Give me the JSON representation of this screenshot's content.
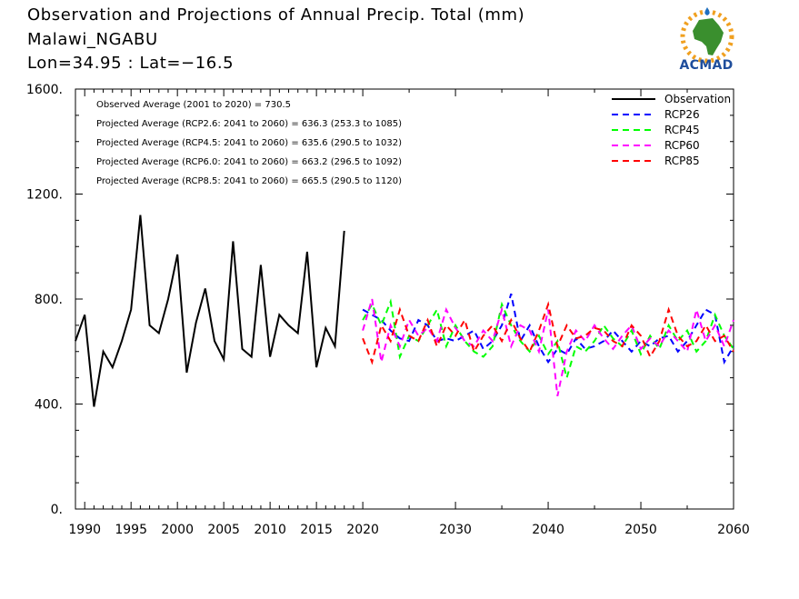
{
  "header": {
    "title": "Observation and Projections of Annual Precip. Total (mm)",
    "location": "Malawi_NGABU",
    "coords": "Lon=34.95 : Lat=−16.5"
  },
  "logo": {
    "text": "ACMAD",
    "icon": "africa-map-icon"
  },
  "colors": {
    "observation": "#000000",
    "rcp26": "#0000ff",
    "rcp45": "#00ff00",
    "rcp60": "#ff00ff",
    "rcp85": "#ff0000"
  },
  "chart_data": {
    "type": "line",
    "title": "Observation and Projections of Annual Precip. Total (mm)",
    "xlabel": "",
    "ylabel": "",
    "ylim": [
      0,
      1600
    ],
    "xlim": [
      1989,
      2060
    ],
    "y_ticks": [
      {
        "value": 0,
        "label": "0."
      },
      {
        "value": 400,
        "label": "400."
      },
      {
        "value": 800,
        "label": "800."
      },
      {
        "value": 1200,
        "label": "1200."
      },
      {
        "value": 1600,
        "label": "1600."
      }
    ],
    "x_ticks": [
      {
        "value": 1990,
        "label": "1990"
      },
      {
        "value": 1995,
        "label": "1995"
      },
      {
        "value": 2000,
        "label": "2000"
      },
      {
        "value": 2005,
        "label": "2005"
      },
      {
        "value": 2010,
        "label": "2010"
      },
      {
        "value": 2015,
        "label": "2015"
      },
      {
        "value": 2020,
        "label": "2020"
      },
      {
        "value": 2030,
        "label": "2030"
      },
      {
        "value": 2040,
        "label": "2040"
      },
      {
        "value": 2050,
        "label": "2050"
      },
      {
        "value": 2060,
        "label": "2060"
      }
    ],
    "annotations": [
      "Observed Average (2001 to 2020) = 730.5",
      "Projected Average (RCP2.6: 2041 to 2060) = 636.3 (253.3 to 1085)",
      "Projected Average (RCP4.5: 2041 to 2060) = 635.6 (290.5 to 1032)",
      "Projected Average (RCP6.0: 2041 to 2060) = 663.2 (296.5 to 1092)",
      "Projected Average (RCP8.5: 2041 to 2060) = 665.5 (290.5 to 1120)"
    ],
    "legend_position": "top-right",
    "series": [
      {
        "name": "Observation",
        "color": "#000000",
        "style": "solid",
        "x": [
          1989,
          1990,
          1991,
          1992,
          1993,
          1994,
          1995,
          1996,
          1997,
          1998,
          1999,
          2000,
          2001,
          2002,
          2003,
          2004,
          2005,
          2006,
          2007,
          2008,
          2009,
          2010,
          2011,
          2012,
          2013,
          2014,
          2015,
          2016,
          2017,
          2018,
          2019
        ],
        "y": [
          640,
          740,
          390,
          600,
          540,
          640,
          760,
          1120,
          700,
          670,
          800,
          970,
          520,
          710,
          840,
          640,
          570,
          1020,
          610,
          580,
          930,
          580,
          740,
          700,
          670,
          980,
          540,
          690,
          620,
          1060,
          null
        ]
      },
      {
        "name": "RCP26",
        "color": "#0000ff",
        "style": "dashed",
        "x": [
          2020,
          2021,
          2022,
          2023,
          2024,
          2025,
          2026,
          2027,
          2028,
          2029,
          2030,
          2031,
          2032,
          2033,
          2034,
          2035,
          2036,
          2037,
          2038,
          2039,
          2040,
          2041,
          2042,
          2043,
          2044,
          2045,
          2046,
          2047,
          2048,
          2049,
          2050,
          2051,
          2052,
          2053,
          2054,
          2055,
          2056,
          2057,
          2058,
          2059,
          2060
        ],
        "y": [
          760,
          740,
          720,
          680,
          650,
          640,
          720,
          700,
          640,
          650,
          640,
          660,
          680,
          610,
          640,
          700,
          820,
          640,
          700,
          620,
          560,
          610,
          590,
          650,
          610,
          620,
          640,
          680,
          640,
          600,
          640,
          620,
          650,
          660,
          600,
          640,
          700,
          760,
          740,
          560,
          620
        ]
      },
      {
        "name": "RCP45",
        "color": "#00ff00",
        "style": "dashed",
        "x": [
          2020,
          2021,
          2022,
          2023,
          2024,
          2025,
          2026,
          2027,
          2028,
          2029,
          2030,
          2031,
          2032,
          2033,
          2034,
          2035,
          2036,
          2037,
          2038,
          2039,
          2040,
          2041,
          2042,
          2043,
          2044,
          2045,
          2046,
          2047,
          2048,
          2049,
          2050,
          2051,
          2052,
          2053,
          2054,
          2055,
          2056,
          2057,
          2058,
          2059,
          2060
        ],
        "y": [
          720,
          780,
          700,
          790,
          580,
          660,
          640,
          700,
          760,
          620,
          700,
          640,
          600,
          580,
          620,
          780,
          700,
          640,
          600,
          660,
          590,
          640,
          500,
          620,
          600,
          640,
          700,
          650,
          620,
          680,
          590,
          660,
          610,
          700,
          640,
          680,
          600,
          640,
          740,
          660,
          610
        ]
      },
      {
        "name": "RCP60",
        "color": "#ff00ff",
        "style": "dashed",
        "x": [
          2020,
          2021,
          2022,
          2023,
          2024,
          2025,
          2026,
          2027,
          2028,
          2029,
          2030,
          2031,
          2032,
          2033,
          2034,
          2035,
          2036,
          2037,
          2038,
          2039,
          2040,
          2041,
          2042,
          2043,
          2044,
          2045,
          2046,
          2047,
          2048,
          2049,
          2050,
          2051,
          2052,
          2053,
          2054,
          2055,
          2056,
          2057,
          2058,
          2059,
          2060
        ],
        "y": [
          680,
          800,
          560,
          700,
          620,
          720,
          660,
          690,
          640,
          760,
          690,
          640,
          620,
          680,
          640,
          760,
          620,
          700,
          680,
          600,
          760,
          430,
          600,
          680,
          640,
          700,
          650,
          610,
          660,
          700,
          610,
          650,
          620,
          680,
          640,
          600,
          760,
          640,
          700,
          620,
          720
        ]
      },
      {
        "name": "RCP85",
        "color": "#ff0000",
        "style": "dashed",
        "x": [
          2020,
          2021,
          2022,
          2023,
          2024,
          2025,
          2026,
          2027,
          2028,
          2029,
          2030,
          2031,
          2032,
          2033,
          2034,
          2035,
          2036,
          2037,
          2038,
          2039,
          2040,
          2041,
          2042,
          2043,
          2044,
          2045,
          2046,
          2047,
          2048,
          2049,
          2050,
          2051,
          2052,
          2053,
          2054,
          2055,
          2056,
          2057,
          2058,
          2059,
          2060
        ],
        "y": [
          650,
          560,
          700,
          640,
          760,
          660,
          640,
          720,
          620,
          700,
          660,
          720,
          600,
          660,
          700,
          640,
          720,
          650,
          600,
          680,
          780,
          620,
          700,
          650,
          660,
          690,
          680,
          640,
          620,
          700,
          660,
          580,
          640,
          760,
          660,
          620,
          640,
          700,
          640,
          660,
          600
        ]
      }
    ]
  }
}
